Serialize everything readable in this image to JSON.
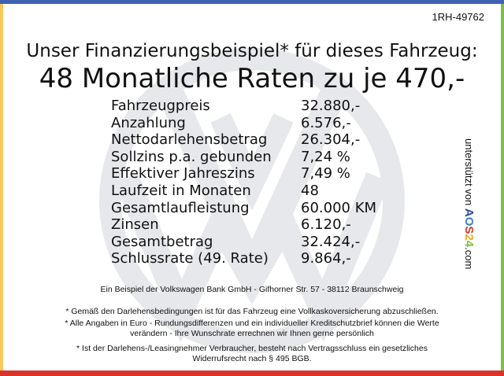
{
  "reference": "1RH-49762",
  "headline": "Unser Finanzierungsbeispiel* für dieses Fahrzeug:",
  "rate_headline": "48 Monatliche Raten zu je 470,-",
  "rows": [
    {
      "label": "Fahrzeugpreis",
      "value": "32.880,-"
    },
    {
      "label": "Anzahlung",
      "value": "6.576,-"
    },
    {
      "label": "Nettodarlehensbetrag",
      "value": "26.304,-"
    },
    {
      "label": "Sollzins p.a. gebunden",
      "value": "7,24 %"
    },
    {
      "label": "Effektiver Jahreszins",
      "value": "7,49 %"
    },
    {
      "label": "Laufzeit in Monaten",
      "value": "48"
    },
    {
      "label": "Gesamtlaufleistung",
      "value": "60.000 KM"
    },
    {
      "label": "Zinsen",
      "value": "6.120,-"
    },
    {
      "label": "Gesamtbetrag",
      "value": "32.424,-"
    },
    {
      "label": "Schlussrate (49. Rate)",
      "value": "9.864,-"
    }
  ],
  "side": {
    "text": "unterstützt von",
    "brand": [
      "A",
      "O",
      "S",
      "2",
      "4"
    ],
    "suffix": ".com"
  },
  "footer": {
    "bank": "Ein Beispiel der Volkswagen Bank GmbH - Gifhorner Str. 57 - 38112 Braunschweig",
    "note1": "* Gemäß den Darlehensbedingungen ist für das Fahrzeug eine Vollkaskoversicherung abzuschließen.",
    "note2a": "* Alle Angaben in Euro - Rundungsdifferenzen und ein individueller Kreditschutzbrief können die Werte",
    "note2b": "verändern - Ihre Wunschrate errechnen wir Ihnen gerne persönlich",
    "note3a": "* Ist der Darlehens-/Leasingnehmer Verbraucher, besteht nach Vertragsschluss ein gesetzliches",
    "note3b": "Widerrufsrecht nach § 495 BGB."
  },
  "colors": {
    "top": "#3f63b0",
    "left": "#f7c85a",
    "right": "#7ac143",
    "bottom": "#d9332b",
    "watermark": "#e6e8eb"
  }
}
